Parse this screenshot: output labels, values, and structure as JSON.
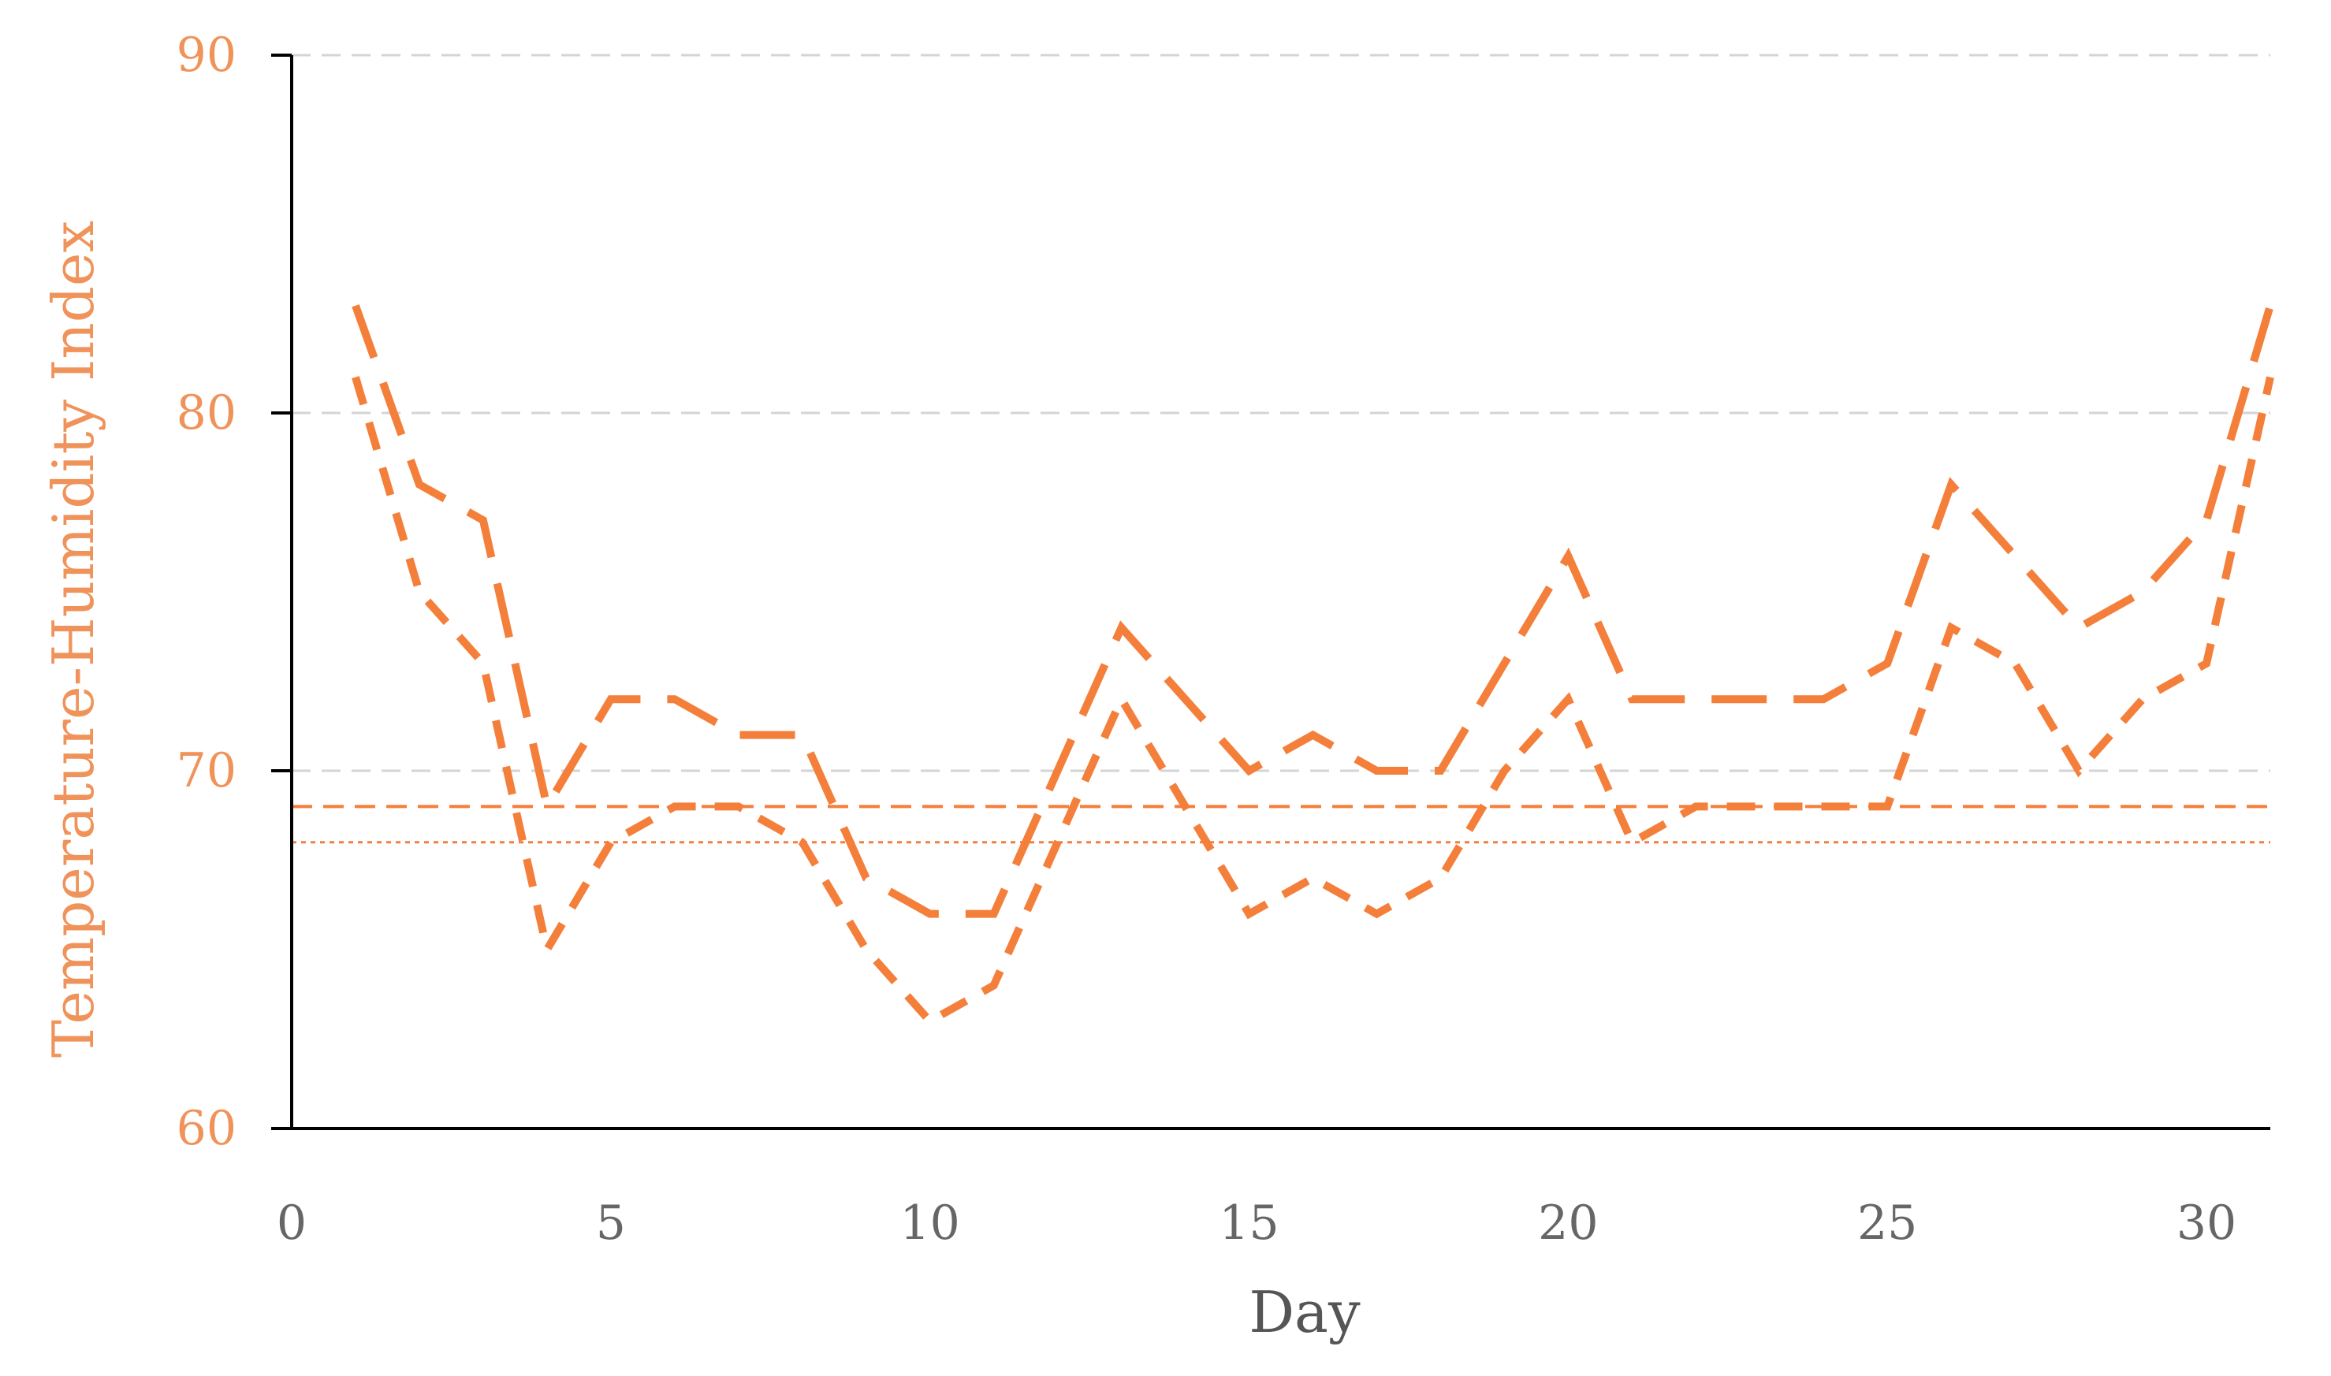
{
  "chart_data": {
    "type": "line",
    "title": "",
    "xlabel": "Day",
    "ylabel": "Temperature-Humidity Index",
    "xlim": [
      0,
      31
    ],
    "ylim": [
      60,
      90
    ],
    "x_ticks": [
      "0",
      "5",
      "10",
      "15",
      "20",
      "25",
      "30"
    ],
    "y_ticks": [
      "60",
      "70",
      "80",
      "90"
    ],
    "grid": "horizontal dashed",
    "legend": "none",
    "colors": {
      "series": "#f47f3b",
      "ylabel": "#f0935a",
      "yticks": "#f0935a",
      "xticks": "#666666",
      "xlabel": "#555555",
      "axis": "#000000",
      "grid": "#d4d4d4"
    },
    "x": [
      1,
      2,
      3,
      4,
      5,
      6,
      7,
      8,
      9,
      10,
      11,
      12,
      13,
      14,
      15,
      16,
      17,
      18,
      19,
      20,
      21,
      22,
      23,
      24,
      25,
      26,
      27,
      28,
      29,
      30,
      31
    ],
    "series": [
      {
        "line_style": "long-dash",
        "values": [
          83,
          78,
          77,
          69,
          72,
          72,
          71,
          71,
          67,
          66,
          66,
          70,
          74,
          72,
          70,
          71,
          70,
          70,
          73,
          76,
          72,
          72,
          72,
          72,
          73,
          78,
          76,
          74,
          75,
          77,
          83
        ]
      },
      {
        "line_style": "short-dash",
        "values": [
          81,
          75,
          73,
          65,
          68,
          69,
          69,
          68,
          65,
          63,
          64,
          68,
          72,
          69,
          66,
          67,
          66,
          67,
          70,
          72,
          68,
          69,
          69,
          69,
          69,
          74,
          73,
          70,
          72,
          73,
          81
        ]
      }
    ],
    "reference_lines": [
      {
        "y": 69,
        "line_style": "dashed"
      },
      {
        "y": 68,
        "line_style": "dotted"
      }
    ]
  }
}
